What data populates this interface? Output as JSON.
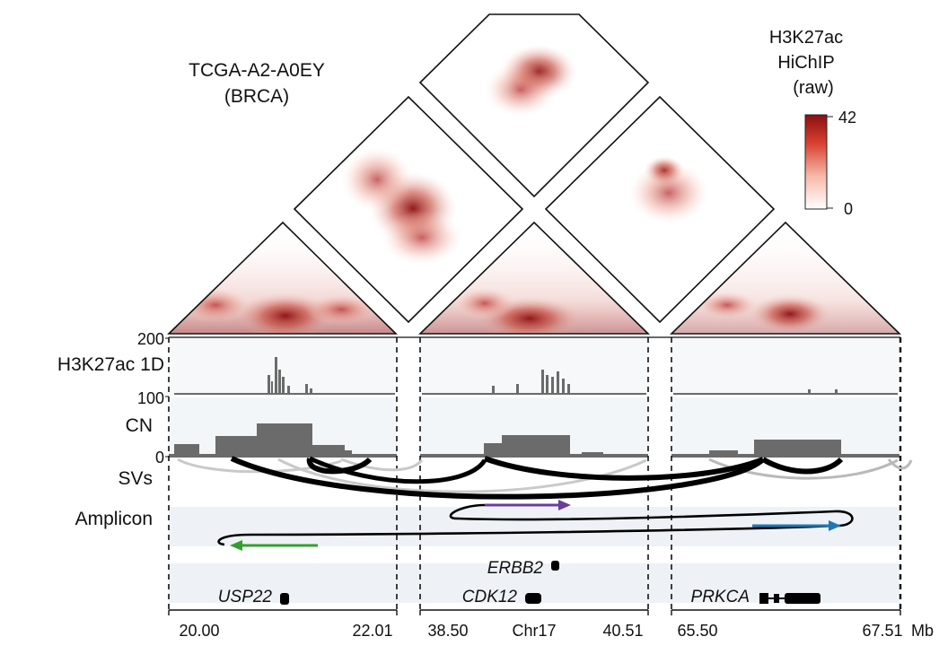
{
  "figure": {
    "sample_title": "TCGA-A2-A0EY",
    "sample_subtitle": "(BRCA)",
    "colorbar": {
      "title_line1": "H3K27ac",
      "title_line2": "HiChIP",
      "title_line3": "(raw)",
      "max_label": "42",
      "min_label": "0",
      "color_low": "#ffffff",
      "color_high": "#8b0f12"
    },
    "tracks": {
      "h3k27ac_label": "H3K27ac 1D",
      "h3k27ac_axis_top": "200",
      "h3k27ac_axis_mid": "100",
      "cn_label": "CN",
      "cn_axis_zero": "0",
      "svs_label": "SVs",
      "amplicon_label": "Amplicon"
    },
    "genes": {
      "usp22": "USP22",
      "erbb2": "ERBB2",
      "cdk12": "CDK12",
      "prkca": "PRKCA"
    },
    "axis": {
      "seg1_start": "20.00",
      "seg1_end": "22.01",
      "seg2_start": "38.50",
      "seg2_chrom": "Chr17",
      "seg2_end": "40.51",
      "seg3_start": "65.50",
      "seg3_end": "67.51",
      "unit": "Mb"
    },
    "colors": {
      "heat_dark": "#8b0f12",
      "track_bar": "#6b6b6b",
      "sv_black": "#000000",
      "sv_grey": "#bdbdbd",
      "arrow_purple": "#6a3d9a",
      "arrow_blue": "#1f78b4",
      "arrow_green": "#33a02c",
      "band_bg": "#eef2f6"
    }
  }
}
